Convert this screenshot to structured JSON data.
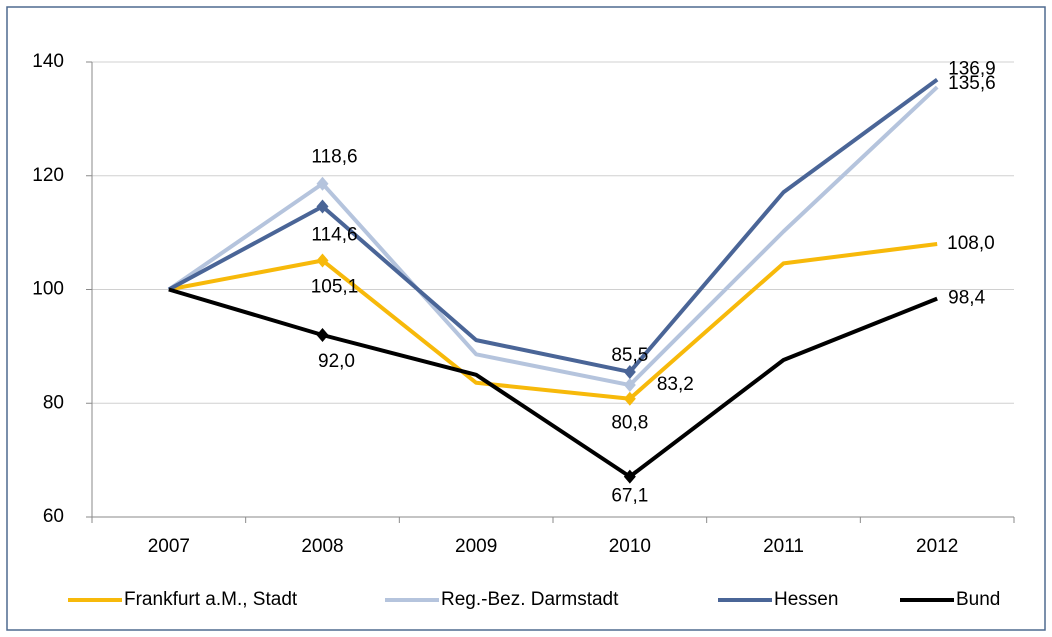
{
  "chart_data": {
    "type": "line",
    "categories": [
      "2007",
      "2008",
      "2009",
      "2010",
      "2011",
      "2012"
    ],
    "series": [
      {
        "name": "Frankfurt a.M., Stadt",
        "color": "#f7b90a",
        "values": [
          100,
          105.1,
          83.6,
          80.8,
          104.6,
          108.0
        ],
        "value_labels": [
          null,
          "105,1",
          null,
          "80,8",
          null,
          "108,0"
        ]
      },
      {
        "name": "Reg.-Bez. Darmstadt",
        "color": "#b5c4dd",
        "values": [
          100,
          118.6,
          88.6,
          83.2,
          110.2,
          135.6
        ],
        "value_labels": [
          null,
          "118,6",
          null,
          "83,2",
          null,
          "135,6"
        ]
      },
      {
        "name": "Hessen",
        "color": "#4a6597",
        "values": [
          100,
          114.6,
          91.1,
          85.5,
          117.1,
          136.9
        ],
        "value_labels": [
          null,
          "114,6",
          null,
          "85,5",
          null,
          "136,9"
        ]
      },
      {
        "name": "Bund",
        "color": "#000000",
        "values": [
          100,
          92.0,
          85.0,
          67.1,
          87.6,
          98.4
        ],
        "value_labels": [
          null,
          "92,0",
          null,
          "67,1",
          null,
          "98,4"
        ]
      }
    ],
    "ylim": [
      60,
      140
    ],
    "yticks": [
      60,
      80,
      100,
      120,
      140
    ],
    "grid": true
  }
}
